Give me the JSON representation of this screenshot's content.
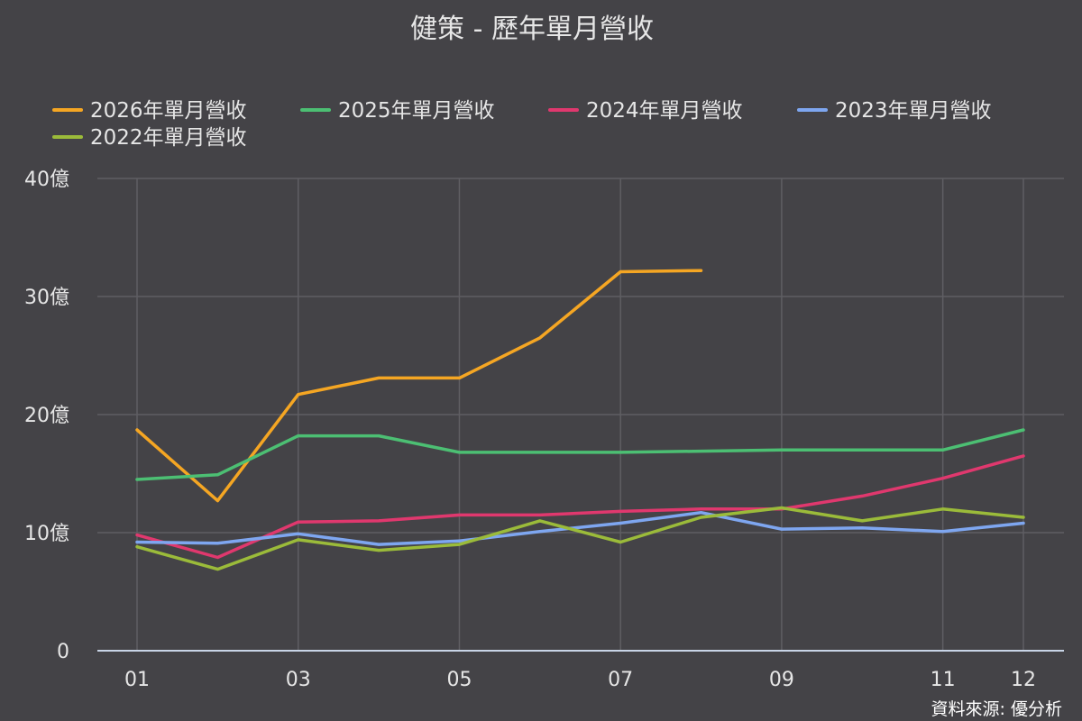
{
  "chart_data": {
    "type": "line",
    "title": "健策 - 歷年單月營收",
    "xlabel": "",
    "ylabel": "",
    "categories": [
      "01",
      "02",
      "03",
      "04",
      "05",
      "06",
      "07",
      "08",
      "09",
      "10",
      "11",
      "12"
    ],
    "x_tick_labels": [
      "01",
      "03",
      "05",
      "07",
      "09",
      "11",
      "12"
    ],
    "y_ticks": [
      0,
      10,
      20,
      30,
      40
    ],
    "y_tick_labels": [
      "0",
      "10億",
      "20億",
      "30億",
      "40億"
    ],
    "ylim": [
      0,
      40
    ],
    "grid": true,
    "legend_position": "top",
    "series": [
      {
        "name": "2026年單月營收",
        "color": "#f5a623",
        "values": [
          18.7,
          12.7,
          21.7,
          23.1,
          23.1,
          26.5,
          32.1,
          32.2,
          null,
          null,
          null,
          null
        ]
      },
      {
        "name": "2025年單月營收",
        "color": "#4cbf73",
        "values": [
          14.5,
          14.9,
          18.2,
          18.2,
          16.8,
          16.8,
          16.8,
          16.9,
          17.0,
          17.0,
          17.0,
          18.7
        ]
      },
      {
        "name": "2024年單月營收",
        "color": "#e0386e",
        "values": [
          9.8,
          7.9,
          10.9,
          11.0,
          11.5,
          11.5,
          11.8,
          12.0,
          12.0,
          13.1,
          14.6,
          16.5
        ]
      },
      {
        "name": "2023年單月營收",
        "color": "#7ea6f0",
        "values": [
          9.2,
          9.1,
          9.9,
          9.0,
          9.3,
          10.1,
          10.8,
          11.7,
          10.3,
          10.4,
          10.1,
          10.8
        ]
      },
      {
        "name": "2022年單月營收",
        "color": "#9bbb3a",
        "values": [
          8.8,
          6.9,
          9.4,
          8.5,
          9.0,
          11.0,
          9.2,
          11.3,
          12.1,
          11.0,
          12.0,
          11.3
        ]
      }
    ]
  },
  "source_label": "資料來源: 優分析"
}
